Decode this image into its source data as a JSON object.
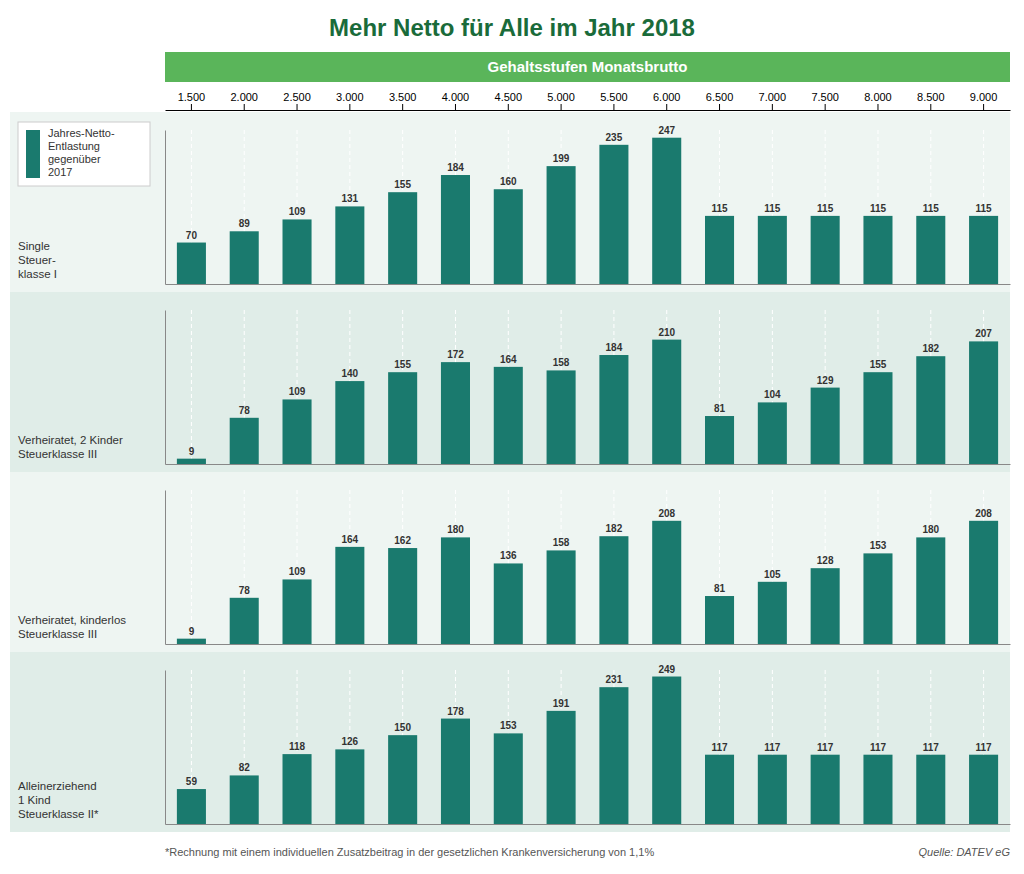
{
  "chart_data": {
    "type": "bar",
    "title": "Mehr Netto für Alle im Jahr 2018",
    "x_label": "Gehaltsstufen Monatsbrutto",
    "y_label": "Jahres-Netto-\nEntlastung\ngegenüber\n2017",
    "categories": [
      "1.500",
      "2.000",
      "2.500",
      "3.000",
      "3.500",
      "4.000",
      "4.500",
      "5.000",
      "5.500",
      "6.000",
      "6.500",
      "7.000",
      "7.500",
      "8.000",
      "8.500",
      "9.000"
    ],
    "series": [
      {
        "name": "Single\nSteuer-\nklasse I",
        "color": "#1a7a6e",
        "values": [
          70,
          89,
          109,
          131,
          155,
          184,
          160,
          199,
          235,
          247,
          115,
          115,
          115,
          115,
          115,
          115
        ]
      },
      {
        "name": "Verheiratet, 2 Kinder\nSteuerklasse III",
        "color": "#1a7a6e",
        "values": [
          9,
          78,
          109,
          140,
          155,
          172,
          164,
          158,
          184,
          210,
          81,
          104,
          129,
          155,
          182,
          207
        ]
      },
      {
        "name": "Verheiratet, kinderlos\nSteuerklasse III",
        "color": "#1a7a6e",
        "values": [
          9,
          78,
          109,
          164,
          162,
          180,
          136,
          158,
          182,
          208,
          81,
          105,
          128,
          153,
          180,
          208
        ]
      },
      {
        "name": "Alleinerziehend\n1 Kind\nSteuerklasse II*",
        "color": "#1a7a6e",
        "values": [
          59,
          82,
          118,
          126,
          150,
          178,
          153,
          191,
          231,
          249,
          117,
          117,
          117,
          117,
          117,
          117
        ]
      }
    ],
    "ylim": [
      0,
      260
    ],
    "grid": true,
    "data_labels": true,
    "tick_labels": "x",
    "annotations": [
      "*Rechnung mit einem individuellen Zusatzbeitrag in der gesetzlichen Krankenversicherung von 1,1%",
      "Quelle: DATEV eG"
    ]
  }
}
